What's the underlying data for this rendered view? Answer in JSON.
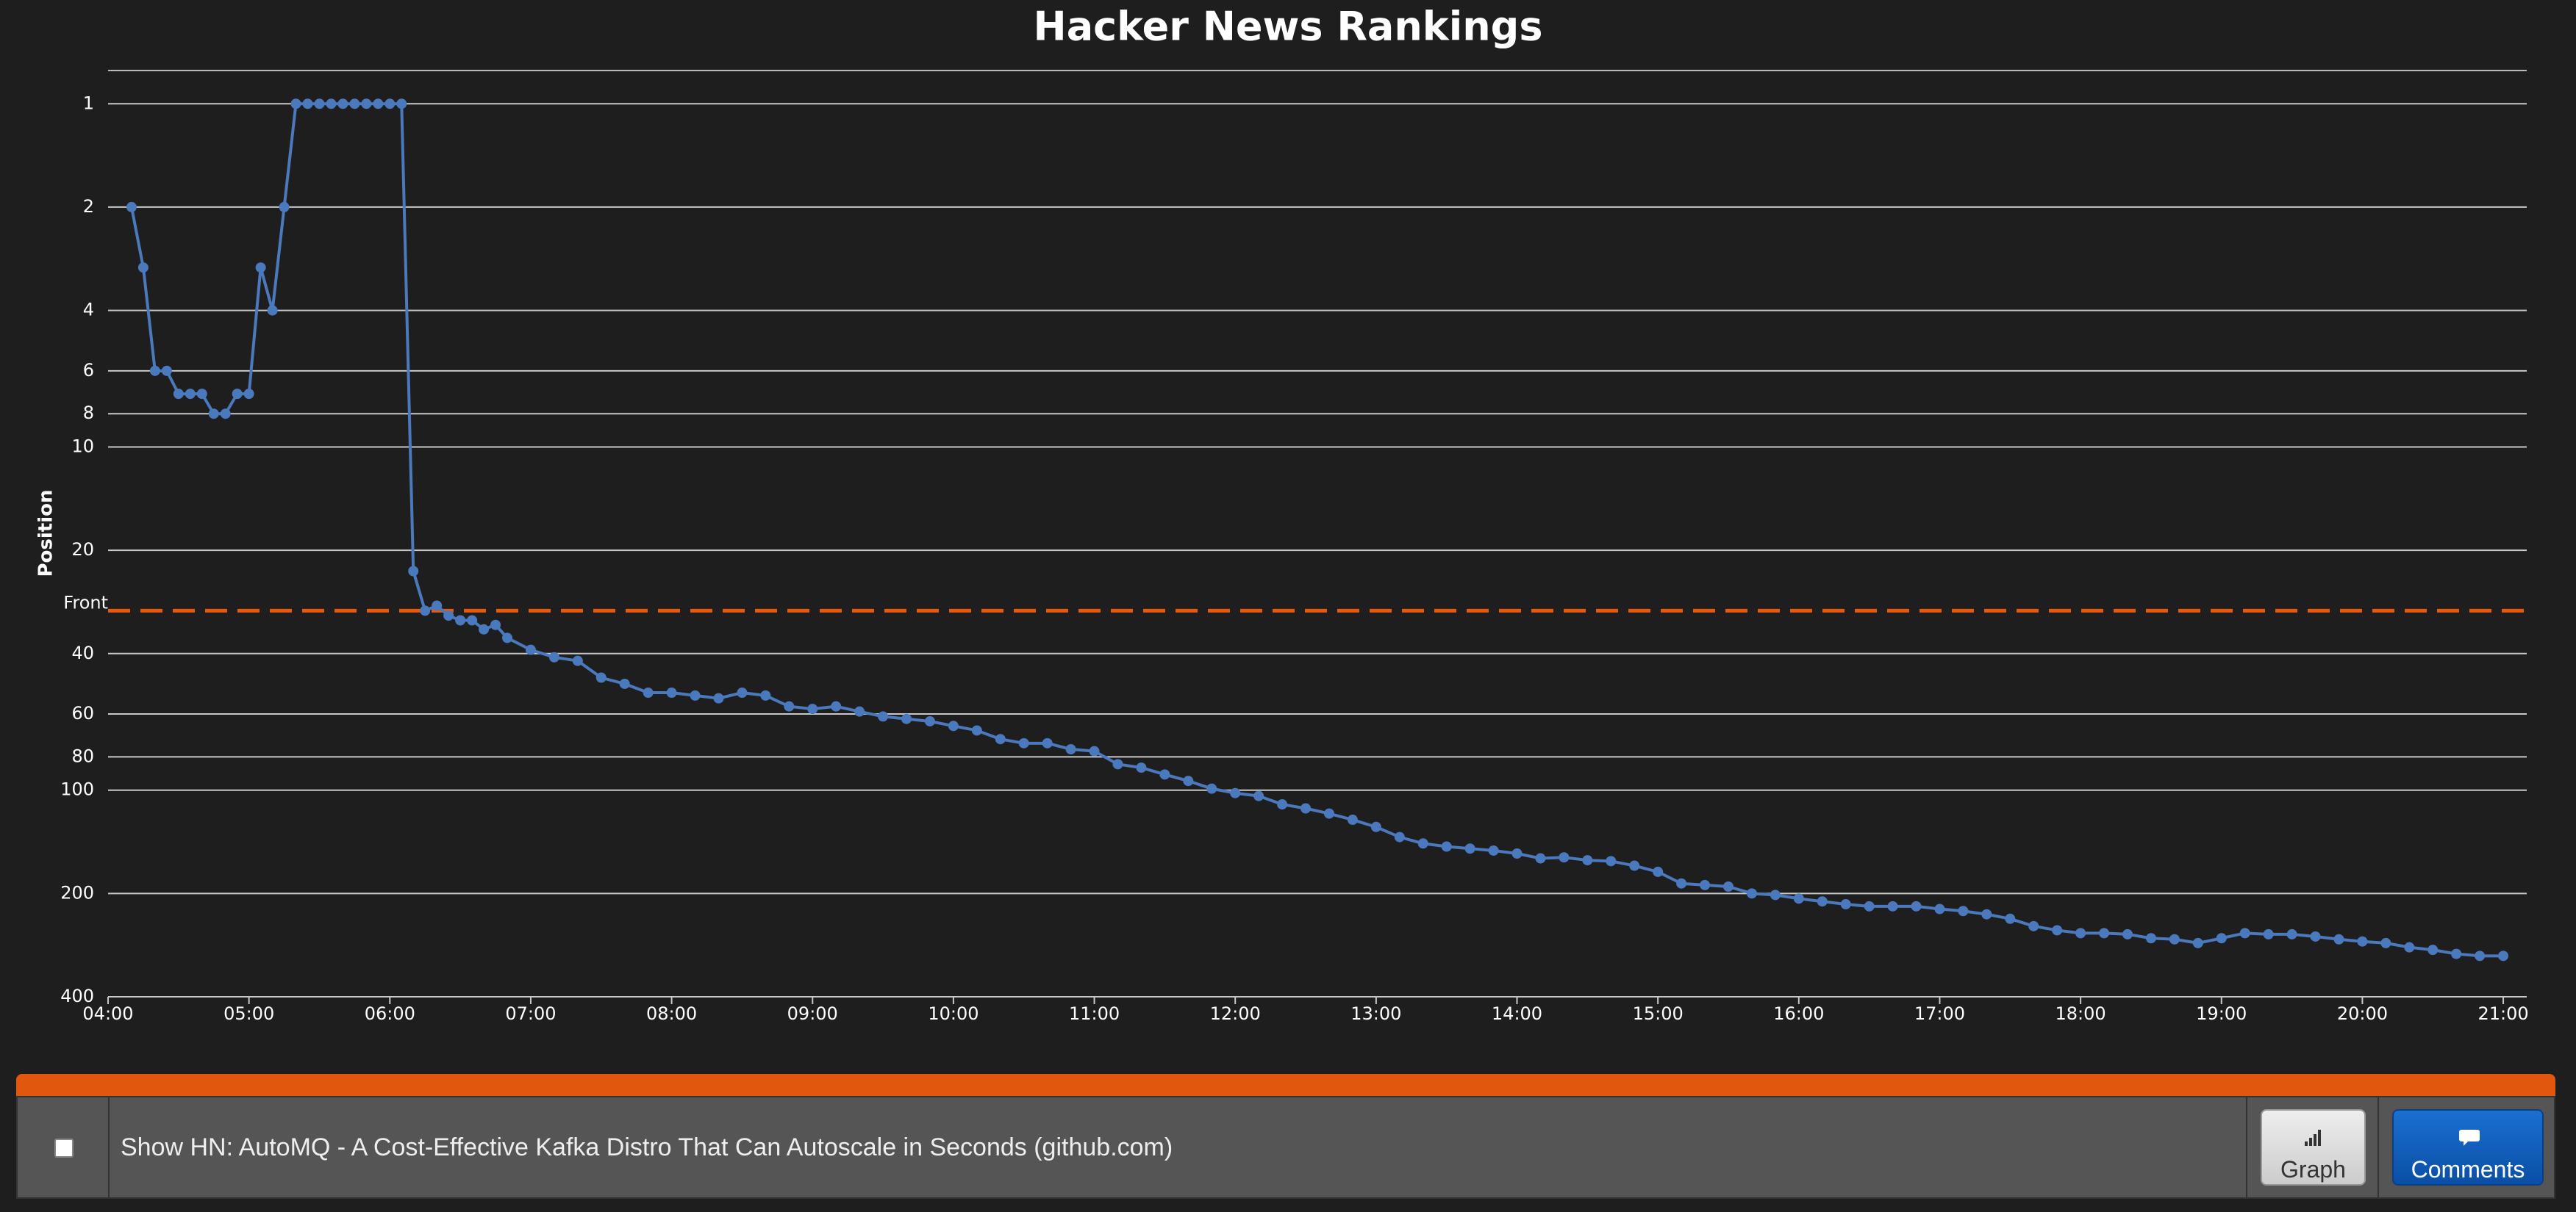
{
  "chart_data": {
    "type": "line",
    "title": "Hacker News Rankings",
    "y_label": "Position",
    "log_scale_y": true,
    "y_inverted": true,
    "grid": true,
    "ylim": [
      0.8,
      400
    ],
    "yticks": [
      1,
      2,
      4,
      6,
      8,
      10,
      20,
      40,
      60,
      80,
      100,
      200,
      400
    ],
    "xlim": [
      240,
      1270
    ],
    "xticks": [
      {
        "value": 240,
        "label": "04:00"
      },
      {
        "value": 300,
        "label": "05:00"
      },
      {
        "value": 360,
        "label": "06:00"
      },
      {
        "value": 420,
        "label": "07:00"
      },
      {
        "value": 480,
        "label": "08:00"
      },
      {
        "value": 540,
        "label": "09:00"
      },
      {
        "value": 600,
        "label": "10:00"
      },
      {
        "value": 660,
        "label": "11:00"
      },
      {
        "value": 720,
        "label": "12:00"
      },
      {
        "value": 780,
        "label": "13:00"
      },
      {
        "value": 840,
        "label": "14:00"
      },
      {
        "value": 900,
        "label": "15:00"
      },
      {
        "value": 960,
        "label": "16:00"
      },
      {
        "value": 1020,
        "label": "17:00"
      },
      {
        "value": 1080,
        "label": "18:00"
      },
      {
        "value": 1140,
        "label": "19:00"
      },
      {
        "value": 1200,
        "label": "20:00"
      },
      {
        "value": 1260,
        "label": "21:00"
      }
    ],
    "reference_line": {
      "value": 30,
      "label": "Front",
      "color": "#e8590c"
    },
    "x": [
      250,
      255,
      260,
      265,
      270,
      275,
      280,
      285,
      290,
      295,
      300,
      305,
      310,
      315,
      320,
      325,
      330,
      335,
      340,
      345,
      350,
      355,
      360,
      365,
      370,
      375,
      380,
      385,
      390,
      395,
      400,
      405,
      410,
      420,
      430,
      440,
      450,
      460,
      470,
      480,
      490,
      500,
      510,
      520,
      530,
      540,
      550,
      560,
      570,
      580,
      590,
      600,
      610,
      620,
      630,
      640,
      650,
      660,
      670,
      680,
      690,
      700,
      710,
      720,
      730,
      740,
      750,
      760,
      770,
      780,
      790,
      800,
      810,
      820,
      830,
      840,
      850,
      860,
      870,
      880,
      890,
      900,
      910,
      920,
      930,
      940,
      950,
      960,
      970,
      980,
      990,
      1000,
      1010,
      1020,
      1030,
      1040,
      1050,
      1060,
      1070,
      1080,
      1090,
      1100,
      1110,
      1120,
      1130,
      1140,
      1150,
      1160,
      1170,
      1180,
      1190,
      1200,
      1210,
      1220,
      1230,
      1240,
      1250,
      1260
    ],
    "series": [
      {
        "color": "#4b79bd",
        "values": [
          2,
          3,
          6,
          6,
          7,
          7,
          7,
          8,
          8,
          7,
          7,
          3,
          4,
          2,
          1,
          1,
          1,
          1,
          1,
          1,
          1,
          1,
          1,
          1,
          23,
          30,
          29,
          31,
          32,
          32,
          34,
          33,
          36,
          39,
          41,
          42,
          47,
          49,
          52,
          52,
          53,
          54,
          52,
          53,
          57,
          58,
          57,
          59,
          61,
          62,
          63,
          65,
          67,
          71,
          73,
          73,
          76,
          77,
          84,
          86,
          90,
          94,
          99,
          102,
          104,
          110,
          113,
          117,
          122,
          128,
          137,
          143,
          146,
          148,
          150,
          153,
          158,
          157,
          160,
          161,
          166,
          173,
          187,
          189,
          191,
          200,
          202,
          207,
          211,
          215,
          218,
          218,
          218,
          222,
          225,
          230,
          237,
          249,
          256,
          261,
          261,
          263,
          270,
          272,
          279,
          270,
          261,
          263,
          263,
          267,
          272,
          276,
          279,
          287,
          292,
          300,
          304,
          304
        ]
      }
    ]
  },
  "story": {
    "title": "Show HN: AutoMQ - A Cost-Effective Kafka Distro That Can Autoscale in Seconds (github.com)",
    "graph_button": "Graph",
    "comments_button": "Comments"
  }
}
